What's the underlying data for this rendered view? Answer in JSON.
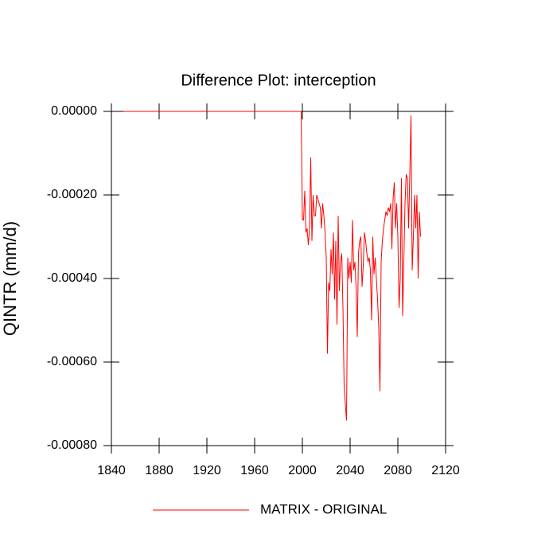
{
  "chart_data": {
    "type": "line",
    "title": "Difference Plot: interception",
    "y_label": "QINTR  (mm/d)",
    "x": [
      1850,
      1999,
      2000,
      2001,
      2002,
      2003,
      2004,
      2005,
      2006,
      2007,
      2008,
      2009,
      2010,
      2011,
      2012,
      2013,
      2014,
      2015,
      2016,
      2017,
      2018,
      2019,
      2020,
      2021,
      2022,
      2023,
      2024,
      2025,
      2026,
      2027,
      2028,
      2029,
      2030,
      2031,
      2032,
      2033,
      2034,
      2035,
      2036,
      2037,
      2038,
      2039,
      2040,
      2041,
      2042,
      2043,
      2044,
      2045,
      2046,
      2047,
      2048,
      2049,
      2050,
      2051,
      2052,
      2053,
      2054,
      2055,
      2056,
      2057,
      2058,
      2059,
      2060,
      2061,
      2062,
      2063,
      2064,
      2065,
      2066,
      2067,
      2068,
      2069,
      2070,
      2071,
      2072,
      2073,
      2074,
      2075,
      2076,
      2077,
      2078,
      2079,
      2080,
      2081,
      2082,
      2083,
      2084,
      2085,
      2086,
      2087,
      2088,
      2089,
      2090,
      2091,
      2092,
      2093,
      2094,
      2095,
      2096,
      2097,
      2098,
      2099
    ],
    "series": [
      {
        "name": "MATRIX - ORIGINAL",
        "color": "#ff0000",
        "values": [
          0,
          0,
          -0.00026,
          -0.00026,
          -0.00019,
          -0.00029,
          -0.00028,
          -0.00032,
          -0.00028,
          -0.00011,
          -0.00031,
          -0.0002,
          -0.00025,
          -0.00025,
          -0.0002,
          -0.00021,
          -0.00022,
          -0.00023,
          -0.00028,
          -0.00022,
          -0.00025,
          -0.00029,
          -0.00035,
          -0.00058,
          -0.00041,
          -0.00043,
          -0.00033,
          -0.00039,
          -0.00029,
          -0.00045,
          -0.00031,
          -0.00051,
          -0.00025,
          -0.00043,
          -0.00036,
          -0.00034,
          -0.00047,
          -0.00066,
          -0.0007,
          -0.00074,
          -0.00035,
          -0.0004,
          -0.00036,
          -0.00041,
          -0.00026,
          -0.00038,
          -0.00036,
          -0.00042,
          -0.00054,
          -0.00034,
          -0.00031,
          -0.0003,
          -0.00042,
          -0.00037,
          -0.00029,
          -0.00031,
          -0.00034,
          -0.00036,
          -0.00035,
          -0.00038,
          -0.0005,
          -0.0003,
          -0.00039,
          -0.00035,
          -0.0004,
          -0.00045,
          -0.00052,
          -0.00067,
          -0.00036,
          -0.00031,
          -0.00028,
          -0.00026,
          -0.00024,
          -0.00025,
          -0.00023,
          -0.00024,
          -0.00022,
          -0.00033,
          -0.00021,
          -0.00017,
          -0.00028,
          -0.00022,
          -0.0003,
          -0.00047,
          -0.0004,
          -0.00016,
          -0.00049,
          -0.00036,
          -0.00022,
          -0.00015,
          -0.00016,
          -0.00028,
          -0.00015,
          -1e-05,
          -0.00038,
          -0.0003,
          -0.0002,
          -0.00028,
          -0.0002,
          -0.0004,
          -0.00024,
          -0.0003
        ]
      }
    ],
    "xlim": [
      1840,
      2120
    ],
    "xticks": [
      1840,
      1880,
      1920,
      1960,
      2000,
      2040,
      2080,
      2120
    ],
    "ylim": [
      -0.0008,
      0
    ],
    "yticks": [
      {
        "value": -0.0008,
        "label": "-0.00080"
      },
      {
        "value": -0.0006,
        "label": "-0.00060"
      },
      {
        "value": -0.0004,
        "label": "-0.00040"
      },
      {
        "value": -0.0002,
        "label": "-0.00020"
      },
      {
        "value": 0,
        "label": "0.00000"
      }
    ],
    "grid": false
  }
}
